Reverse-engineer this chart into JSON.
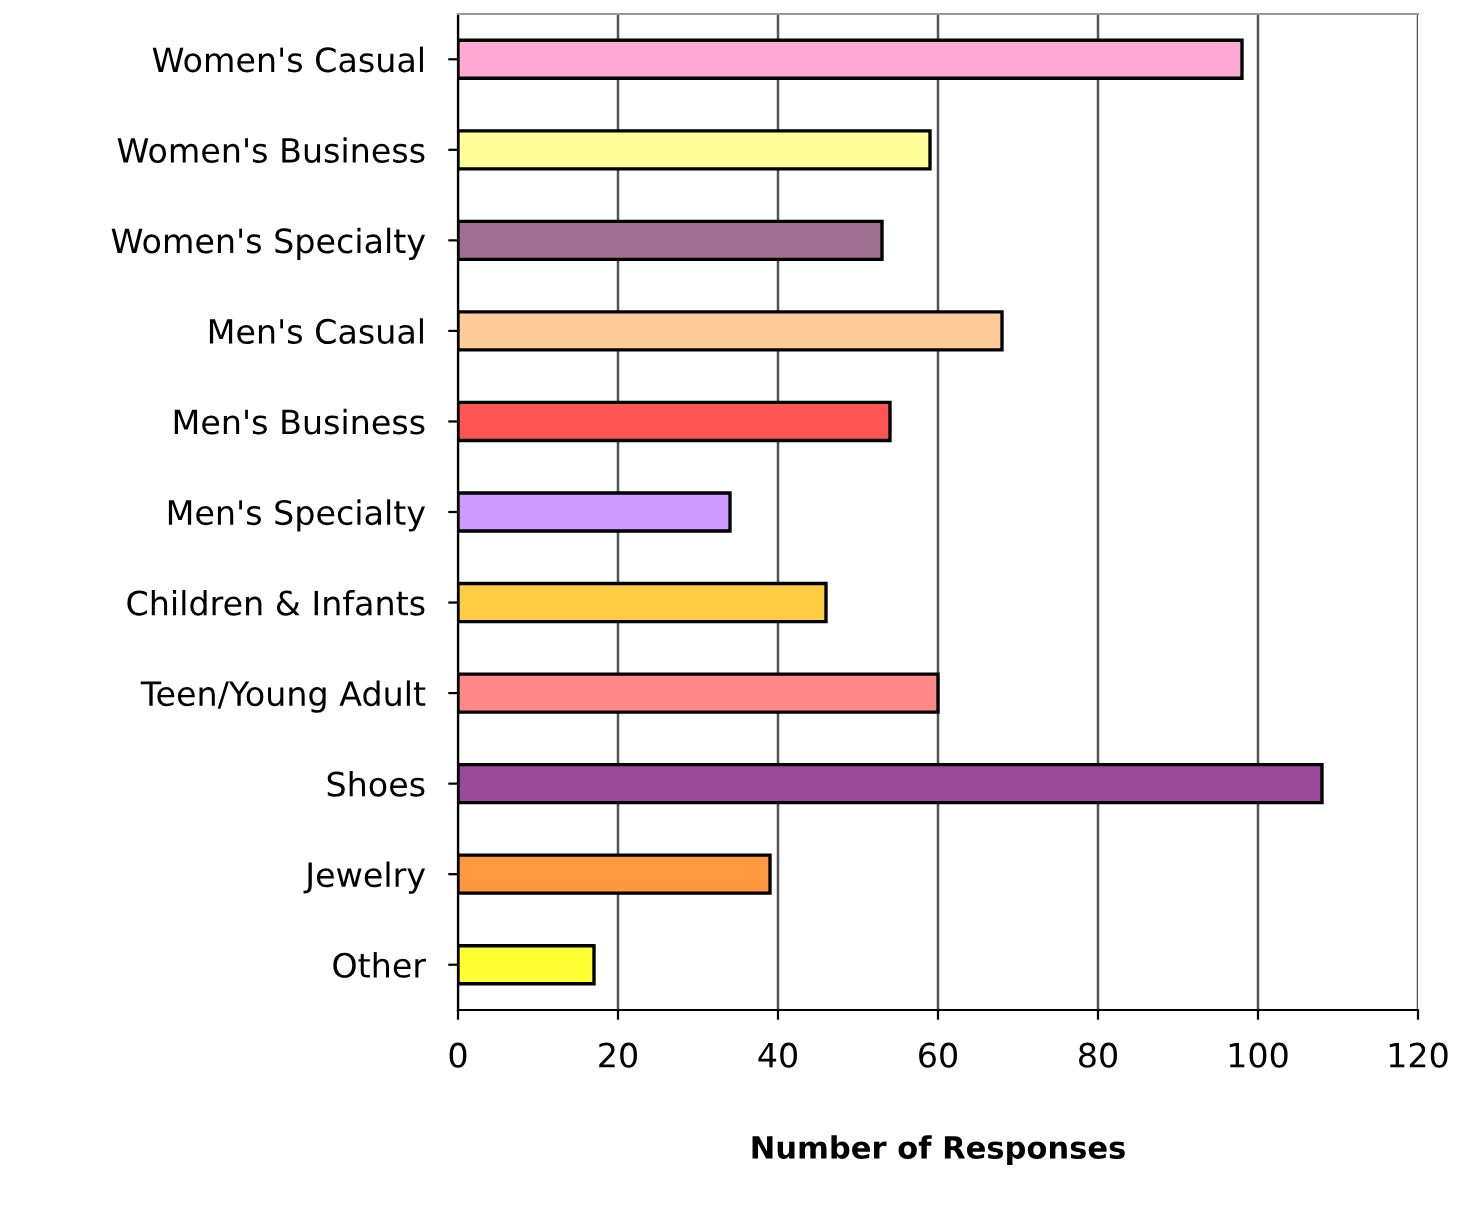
{
  "chart_data": {
    "type": "bar",
    "orientation": "horizontal",
    "xlabel": "Number of Responses",
    "categories": [
      "Women's Casual",
      "Women's Business",
      "Women's Specialty",
      "Men's Casual",
      "Men's Business",
      "Men's Specialty",
      "Children & Infants",
      "Teen/Young Adult",
      "Shoes",
      "Jewelry",
      "Other"
    ],
    "values": [
      98,
      59,
      53,
      68,
      54,
      34,
      46,
      60,
      108,
      39,
      17
    ],
    "colors": [
      "#ffaad4",
      "#ffff99",
      "#a07090",
      "#ffcc99",
      "#ff5555",
      "#cc99ff",
      "#ffcc44",
      "#ff8888",
      "#9a4a9a",
      "#ff9940",
      "#ffff33"
    ],
    "xlim": [
      0,
      120
    ],
    "xticks": [
      0,
      20,
      40,
      60,
      80,
      100,
      120
    ],
    "grid": "x",
    "legend": false
  }
}
